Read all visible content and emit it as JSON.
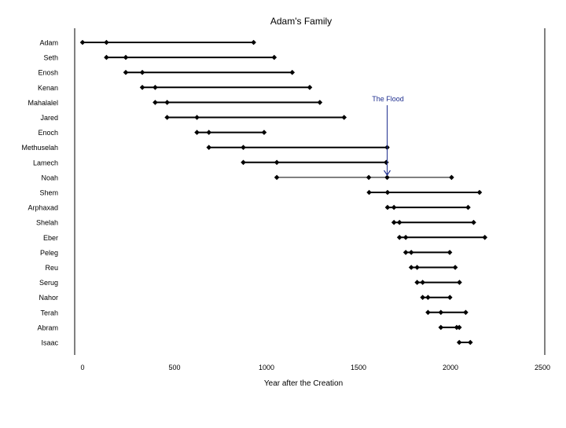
{
  "chart_data": {
    "type": "scatter",
    "title": "Adam's Family",
    "xlabel": "Year after the Creation",
    "ylabel": "",
    "xlim": [
      0,
      2500
    ],
    "x_ticks": [
      0,
      500,
      1000,
      1500,
      2000,
      2500
    ],
    "x_tick_labels": [
      "0",
      "500",
      "1000",
      "1500",
      "2000",
      "2500"
    ],
    "grid": false,
    "legend": "none",
    "colors": {
      "lines": "#000000",
      "markers": "#000000",
      "annotation": "#1f2f8f",
      "axis": "#000000"
    },
    "people": [
      {
        "name": "Adam",
        "events": [
          0,
          130,
          930
        ]
      },
      {
        "name": "Seth",
        "events": [
          130,
          235,
          1042
        ]
      },
      {
        "name": "Enosh",
        "events": [
          235,
          325,
          1140
        ]
      },
      {
        "name": "Kenan",
        "events": [
          325,
          395,
          1235
        ]
      },
      {
        "name": "Mahalalel",
        "events": [
          395,
          460,
          1290
        ]
      },
      {
        "name": "Jared",
        "events": [
          460,
          622,
          1422
        ]
      },
      {
        "name": "Enoch",
        "events": [
          622,
          687,
          987
        ]
      },
      {
        "name": "Methuselah",
        "events": [
          687,
          874,
          1656
        ]
      },
      {
        "name": "Lamech",
        "events": [
          874,
          1056,
          1651
        ]
      },
      {
        "name": "Noah",
        "events": [
          1056,
          1556,
          1656,
          2006
        ]
      },
      {
        "name": "Shem",
        "events": [
          1558,
          1658,
          2158
        ]
      },
      {
        "name": "Arphaxad",
        "events": [
          1658,
          1693,
          2096
        ]
      },
      {
        "name": "Shelah",
        "events": [
          1693,
          1723,
          2126
        ]
      },
      {
        "name": "Eber",
        "events": [
          1723,
          1757,
          2187
        ]
      },
      {
        "name": "Peleg",
        "events": [
          1757,
          1787,
          1996
        ]
      },
      {
        "name": "Reu",
        "events": [
          1787,
          1819,
          2026
        ]
      },
      {
        "name": "Serug",
        "events": [
          1819,
          1849,
          2049
        ]
      },
      {
        "name": "Nahor",
        "events": [
          1849,
          1878,
          1997
        ]
      },
      {
        "name": "Terah",
        "events": [
          1878,
          1948,
          2083
        ]
      },
      {
        "name": "Abram",
        "events": [
          1948,
          2034,
          2048
        ]
      },
      {
        "name": "Isaac",
        "events": [
          2048,
          2108
        ]
      }
    ],
    "annotation": {
      "label": "The Flood",
      "x": 1656
    }
  }
}
